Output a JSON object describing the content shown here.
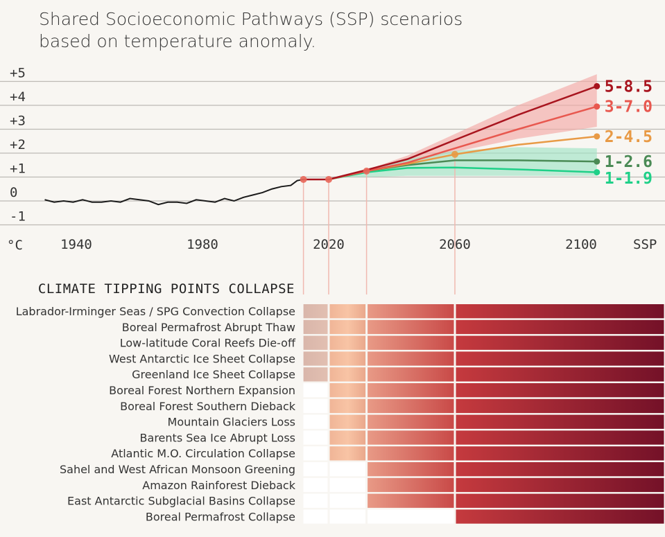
{
  "title_lines": [
    "Shared Socioeconomic Pathways (SSP) scenarios",
    "based on temperature anomaly."
  ],
  "chart_data": [
    {
      "type": "line",
      "yunit_label": "°C",
      "xlabel_right": "SSP",
      "ylim": [
        -1,
        5
      ],
      "yticks": [
        5,
        4,
        3,
        2,
        1,
        0,
        -1
      ],
      "ytick_labels": [
        "+5",
        "+4",
        "+3",
        "+2",
        "+1",
        "0",
        "-1"
      ],
      "xticks": [
        1940,
        1980,
        2020,
        2060,
        2100
      ],
      "grid": true,
      "historical": {
        "color": "#1a1a1a",
        "x": [
          1930,
          1933,
          1936,
          1939,
          1942,
          1945,
          1948,
          1951,
          1954,
          1957,
          1960,
          1963,
          1966,
          1969,
          1972,
          1975,
          1978,
          1981,
          1984,
          1987,
          1990,
          1993,
          1996,
          1999,
          2002,
          2005,
          2008,
          2010,
          2012
        ],
        "y": [
          0.05,
          -0.05,
          0.0,
          -0.05,
          0.05,
          -0.05,
          -0.05,
          0.0,
          -0.05,
          0.1,
          0.05,
          0.0,
          -0.15,
          -0.05,
          -0.05,
          -0.1,
          0.05,
          0.0,
          -0.05,
          0.1,
          0.0,
          0.15,
          0.25,
          0.35,
          0.5,
          0.6,
          0.65,
          0.85,
          0.9
        ]
      },
      "markers": [
        {
          "x": 2012,
          "y": 0.9,
          "color": "#e8675a"
        },
        {
          "x": 2020,
          "y": 0.9,
          "color": "#e8675a"
        },
        {
          "x": 2032,
          "y": 1.25,
          "color": "#e8675a"
        },
        {
          "x": 2060,
          "y": 1.95,
          "color": "#e89a45"
        }
      ],
      "bands": [
        {
          "color": "#f2a9a6",
          "x": [
            2032,
            2045,
            2060,
            2080,
            2105
          ],
          "low": [
            1.25,
            1.6,
            2.05,
            2.6,
            3.1
          ],
          "high": [
            1.3,
            1.9,
            2.8,
            4.0,
            5.3
          ]
        },
        {
          "color": "#9fe3c4",
          "x": [
            2025,
            2032,
            2045,
            2060,
            2080,
            2105
          ],
          "low": [
            1.0,
            1.0,
            1.05,
            1.05,
            1.05,
            1.05
          ],
          "high": [
            1.1,
            1.3,
            1.75,
            2.1,
            2.25,
            2.2
          ]
        }
      ],
      "series": [
        {
          "name": "5-8.5",
          "color": "#a8141e",
          "x": [
            2020,
            2032,
            2045,
            2060,
            2080,
            2105
          ],
          "y": [
            0.9,
            1.3,
            1.75,
            2.55,
            3.6,
            4.8
          ]
        },
        {
          "name": "3-7.0",
          "color": "#e8584f",
          "x": [
            2020,
            2032,
            2045,
            2060,
            2080,
            2105
          ],
          "y": [
            0.9,
            1.25,
            1.6,
            2.2,
            3.0,
            3.95
          ]
        },
        {
          "name": "2-4.5",
          "color": "#e89a45",
          "x": [
            2020,
            2032,
            2045,
            2060,
            2080,
            2105
          ],
          "y": [
            0.9,
            1.25,
            1.55,
            1.95,
            2.35,
            2.7
          ]
        },
        {
          "name": "1-2.6",
          "color": "#4a8a55",
          "x": [
            2020,
            2032,
            2045,
            2060,
            2080,
            2105
          ],
          "y": [
            0.9,
            1.25,
            1.5,
            1.7,
            1.7,
            1.65
          ]
        },
        {
          "name": "1-1.9",
          "color": "#1fd088",
          "x": [
            2020,
            2032,
            2045,
            2060,
            2080,
            2105
          ],
          "y": [
            0.9,
            1.2,
            1.38,
            1.4,
            1.32,
            1.2
          ]
        }
      ]
    },
    {
      "type": "heatmap",
      "title": "CLIMATE TIPPING POINTS COLLAPSE",
      "column_breaks": [
        2012,
        2020,
        2032,
        2060
      ],
      "column_colors": [
        [
          "#d9b6aa",
          "#e2bfb1"
        ],
        [
          "#f0b597",
          "#f8c4a5",
          "#eaa88c"
        ],
        [
          "#e89a86",
          "#c94a48"
        ],
        [
          "#c53a3e",
          "#741128"
        ]
      ],
      "rows": [
        {
          "label": "Labrador-Irminger Seas / SPG Convection Collapse",
          "start_col": 0
        },
        {
          "label": "Boreal Permafrost Abrupt Thaw",
          "start_col": 0
        },
        {
          "label": "Low-latitude Coral Reefs Die-off",
          "start_col": 0
        },
        {
          "label": "West Antarctic Ice Sheet Collapse",
          "start_col": 0
        },
        {
          "label": "Greenland Ice Sheet Collapse",
          "start_col": 0
        },
        {
          "label": "Boreal Forest Northern Expansion",
          "start_col": 1
        },
        {
          "label": "Boreal Forest Southern Dieback",
          "start_col": 1
        },
        {
          "label": "Mountain Glaciers Loss",
          "start_col": 1
        },
        {
          "label": "Barents Sea Ice Abrupt Loss",
          "start_col": 1
        },
        {
          "label": "Atlantic M.O. Circulation Collapse",
          "start_col": 1
        },
        {
          "label": "Sahel and West African Monsoon Greening",
          "start_col": 2
        },
        {
          "label": "Amazon Rainforest Dieback",
          "start_col": 2
        },
        {
          "label": "East Antarctic Subglacial Basins Collapse",
          "start_col": 2
        },
        {
          "label": "Boreal Permafrost Collapse",
          "start_col": 3
        }
      ]
    }
  ]
}
